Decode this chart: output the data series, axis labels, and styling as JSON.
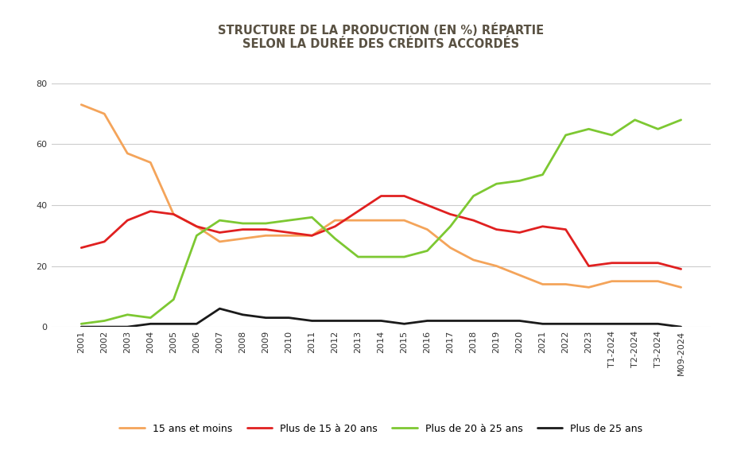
{
  "title": "STRUCTURE DE LA PRODUCTION (EN %) RÉPARTIE\nSELON LA DURÉE DES CRÉDITS ACCORDÉS",
  "labels": [
    "2001",
    "2002",
    "2003",
    "2004",
    "2005",
    "2006",
    "2007",
    "2008",
    "2009",
    "2010",
    "2011",
    "2012",
    "2013",
    "2014",
    "2015",
    "2016",
    "2017",
    "2018",
    "2019",
    "2020",
    "2021",
    "2022",
    "2023",
    "T1-2024",
    "T2-2024",
    "T3-2024",
    "M09-2024"
  ],
  "series": {
    "15 ans et moins": {
      "color": "#F4A45A",
      "values": [
        73,
        70,
        57,
        54,
        37,
        33,
        28,
        29,
        30,
        30,
        30,
        35,
        35,
        35,
        35,
        32,
        26,
        22,
        20,
        17,
        14,
        14,
        13,
        15,
        15,
        15,
        13
      ]
    },
    "Plus de 15 à 20 ans": {
      "color": "#E02020",
      "values": [
        26,
        28,
        35,
        38,
        37,
        33,
        31,
        32,
        32,
        31,
        30,
        33,
        38,
        43,
        43,
        40,
        37,
        35,
        32,
        31,
        33,
        32,
        20,
        21,
        21,
        21,
        19
      ]
    },
    "Plus de 20 à 25 ans": {
      "color": "#7DC832",
      "values": [
        1,
        2,
        4,
        3,
        9,
        30,
        35,
        34,
        34,
        35,
        36,
        29,
        23,
        23,
        23,
        25,
        33,
        43,
        47,
        48,
        50,
        63,
        65,
        63,
        68,
        65,
        68
      ]
    },
    "Plus de 25 ans": {
      "color": "#1A1A1A",
      "values": [
        0,
        0,
        0,
        1,
        1,
        1,
        6,
        4,
        3,
        3,
        2,
        2,
        2,
        2,
        1,
        2,
        2,
        2,
        2,
        2,
        1,
        1,
        1,
        1,
        1,
        1,
        0
      ]
    }
  },
  "ylim": [
    0,
    88
  ],
  "yticks": [
    0,
    20,
    40,
    60,
    80
  ],
  "background_color": "#FFFFFF",
  "grid_color": "#CCCCCC",
  "title_color": "#595142",
  "title_fontsize": 10.5,
  "legend_fontsize": 9,
  "tick_fontsize": 8,
  "line_width": 2.0,
  "figsize": [
    9.22,
    5.71
  ],
  "dpi": 100
}
